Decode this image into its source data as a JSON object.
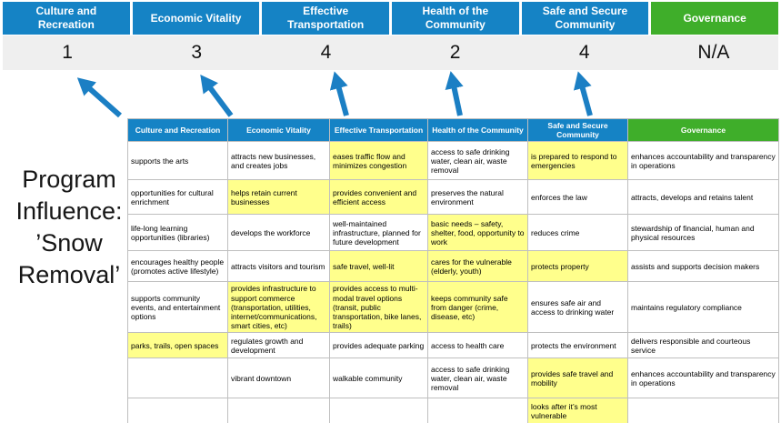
{
  "slide": {
    "title": "Program Influence: ’Snow Removal’"
  },
  "colors": {
    "pillar_blue": "#1583c5",
    "pillar_green": "#3fae2a",
    "score_band_bg": "#efefef",
    "highlight_yellow": "#ffff8c",
    "arrow_blue": "#1b7fc4"
  },
  "scoreboard": {
    "columns": [
      {
        "label": "Culture and Recreation",
        "score": "1",
        "accent": "blue"
      },
      {
        "label": "Economic Vitality",
        "score": "3",
        "accent": "blue"
      },
      {
        "label": "Effective Transportation",
        "score": "4",
        "accent": "blue"
      },
      {
        "label": "Health of the Community",
        "score": "2",
        "accent": "blue"
      },
      {
        "label": "Safe and Secure Community",
        "score": "4",
        "accent": "blue"
      },
      {
        "label": "Governance",
        "score": "N/A",
        "accent": "green"
      }
    ]
  },
  "matrix": {
    "headers": [
      {
        "label": "Culture and Recreation",
        "accent": "blue"
      },
      {
        "label": "Economic Vitality",
        "accent": "blue"
      },
      {
        "label": "Effective Transportation",
        "accent": "blue"
      },
      {
        "label": "Health of the Community",
        "accent": "blue"
      },
      {
        "label": "Safe and Secure Community",
        "accent": "blue"
      },
      {
        "label": "Governance",
        "accent": "green"
      }
    ],
    "rows": [
      [
        {
          "text": "supports the arts",
          "highlight": false
        },
        {
          "text": "attracts new businesses, and creates jobs",
          "highlight": false
        },
        {
          "text": "eases traffic flow and minimizes congestion",
          "highlight": true
        },
        {
          "text": "access to safe drinking water, clean air, waste removal",
          "highlight": false
        },
        {
          "text": "is prepared to respond to emergencies",
          "highlight": true
        },
        {
          "text": "enhances accountability and transparency in operations",
          "highlight": false
        }
      ],
      [
        {
          "text": "opportunities for cultural enrichment",
          "highlight": false
        },
        {
          "text": "helps retain current businesses",
          "highlight": true
        },
        {
          "text": "provides convenient and efficient access",
          "highlight": true
        },
        {
          "text": "preserves the natural environment",
          "highlight": false
        },
        {
          "text": "enforces the law",
          "highlight": false
        },
        {
          "text": "attracts, develops and retains talent",
          "highlight": false
        }
      ],
      [
        {
          "text": "life-long learning opportunities (libraries)",
          "highlight": false
        },
        {
          "text": "develops the workforce",
          "highlight": false
        },
        {
          "text": "well-maintained infrastructure, planned for future development",
          "highlight": false
        },
        {
          "text": "basic needs – safety, shelter, food, opportunity to work",
          "highlight": true
        },
        {
          "text": "reduces crime",
          "highlight": false
        },
        {
          "text": "stewardship of financial, human and physical resources",
          "highlight": false
        }
      ],
      [
        {
          "text": "encourages healthy people (promotes active lifestyle)",
          "highlight": false
        },
        {
          "text": "attracts visitors and tourism",
          "highlight": false
        },
        {
          "text": "safe travel, well-lit",
          "highlight": true
        },
        {
          "text": "cares for the vulnerable (elderly, youth)",
          "highlight": true
        },
        {
          "text": "protects property",
          "highlight": true
        },
        {
          "text": "assists and supports decision makers",
          "highlight": false
        }
      ],
      [
        {
          "text": "supports community events, and entertainment options",
          "highlight": false
        },
        {
          "text": "provides infrastructure to support commerce (transportation, utilities, internet/communications, smart cities, etc)",
          "highlight": true
        },
        {
          "text": "provides access to multi-modal travel options (transit, public transportation, bike lanes, trails)",
          "highlight": true
        },
        {
          "text": "keeps community safe from danger (crime, disease, etc)",
          "highlight": true
        },
        {
          "text": "ensures safe air and access to drinking water",
          "highlight": false
        },
        {
          "text": "maintains regulatory compliance",
          "highlight": false
        }
      ],
      [
        {
          "text": "parks, trails, open spaces",
          "highlight": true
        },
        {
          "text": "regulates growth and development",
          "highlight": false
        },
        {
          "text": "provides adequate parking",
          "highlight": false
        },
        {
          "text": "access to health care",
          "highlight": false
        },
        {
          "text": "protects the environment",
          "highlight": false
        },
        {
          "text": "delivers responsible and courteous service",
          "highlight": false
        }
      ],
      [
        {
          "text": "",
          "highlight": false
        },
        {
          "text": "vibrant downtown",
          "highlight": false
        },
        {
          "text": "walkable community",
          "highlight": false
        },
        {
          "text": "access to safe drinking water, clean air, waste removal",
          "highlight": false
        },
        {
          "text": "provides safe travel and mobility",
          "highlight": true
        },
        {
          "text": "enhances accountability and transparency in operations",
          "highlight": false
        }
      ],
      [
        {
          "text": "",
          "highlight": false
        },
        {
          "text": "",
          "highlight": false
        },
        {
          "text": "",
          "highlight": false
        },
        {
          "text": "",
          "highlight": false
        },
        {
          "text": "looks after it’s most vulnerable",
          "highlight": true
        },
        {
          "text": "",
          "highlight": false
        }
      ]
    ]
  }
}
